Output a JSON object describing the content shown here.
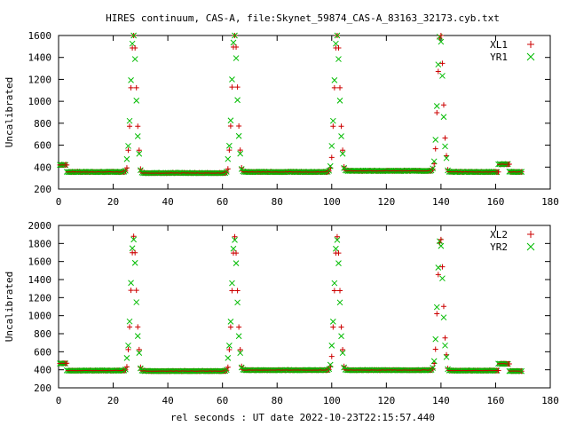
{
  "title": "HIRES continuum, CAS-A, file:Skynet_59874_CAS-A_83163_32173.cyb.txt",
  "xlabel": "rel seconds : UT date 2022-10-23T22:15:57.440",
  "colors": {
    "red_series": "#cc0000",
    "green_series": "#00bb00",
    "background": "#ffffff",
    "axis": "#000000"
  },
  "chart_data": [
    {
      "type": "scatter",
      "ylabel": "Uncalibrated",
      "xlim": [
        0,
        180
      ],
      "ylim": [
        200,
        1600
      ],
      "xticks": [
        0,
        20,
        40,
        60,
        80,
        100,
        120,
        140,
        160,
        180
      ],
      "yticks": [
        200,
        400,
        600,
        800,
        1000,
        1200,
        1400,
        1600
      ],
      "legend_position": "top-right",
      "peaks": [
        27.5,
        64.5,
        102.0,
        139.8
      ],
      "x_range": [
        0.5,
        169.5
      ],
      "baseline_segments": [
        {
          "x": [
            0,
            3
          ],
          "y": 420
        },
        {
          "x": [
            3,
            25
          ],
          "y": 355
        },
        {
          "x": [
            30,
            62
          ],
          "y": 345
        },
        {
          "x": [
            67,
            100
          ],
          "y": 355
        },
        {
          "x": [
            104.5,
            138
          ],
          "y": 365
        },
        {
          "x": [
            142.5,
            161
          ],
          "y": 355
        },
        {
          "x": [
            161,
            165
          ],
          "y": 425
        },
        {
          "x": [
            165,
            170
          ],
          "y": 355
        }
      ],
      "peak_values": [
        1580,
        1580,
        1580,
        1580
      ],
      "series": [
        {
          "name": "XL1",
          "marker": "plus",
          "color": "#cc0000"
        },
        {
          "name": "YR1",
          "marker": "cross",
          "color": "#00bb00"
        }
      ]
    },
    {
      "type": "scatter",
      "ylabel": "Uncalibrated",
      "xlim": [
        0,
        180
      ],
      "ylim": [
        200,
        2000
      ],
      "xticks": [
        0,
        20,
        40,
        60,
        80,
        100,
        120,
        140,
        160,
        180
      ],
      "yticks": [
        200,
        400,
        600,
        800,
        1000,
        1200,
        1400,
        1600,
        1800,
        2000
      ],
      "legend_position": "top-right",
      "peaks": [
        27.5,
        64.5,
        102.0,
        139.8
      ],
      "x_range": [
        0.5,
        169.5
      ],
      "baseline_segments": [
        {
          "x": [
            0,
            3
          ],
          "y": 470
        },
        {
          "x": [
            3,
            25
          ],
          "y": 390
        },
        {
          "x": [
            30,
            62
          ],
          "y": 385
        },
        {
          "x": [
            67,
            100
          ],
          "y": 395
        },
        {
          "x": [
            104.5,
            138
          ],
          "y": 395
        },
        {
          "x": [
            142.5,
            161
          ],
          "y": 390
        },
        {
          "x": [
            161,
            165
          ],
          "y": 465
        },
        {
          "x": [
            165,
            170
          ],
          "y": 385
        }
      ],
      "peak_values": [
        1800,
        1790,
        1800,
        1800
      ],
      "series": [
        {
          "name": "XL2",
          "marker": "plus",
          "color": "#cc0000"
        },
        {
          "name": "YR2",
          "marker": "cross",
          "color": "#00bb00"
        }
      ]
    }
  ]
}
